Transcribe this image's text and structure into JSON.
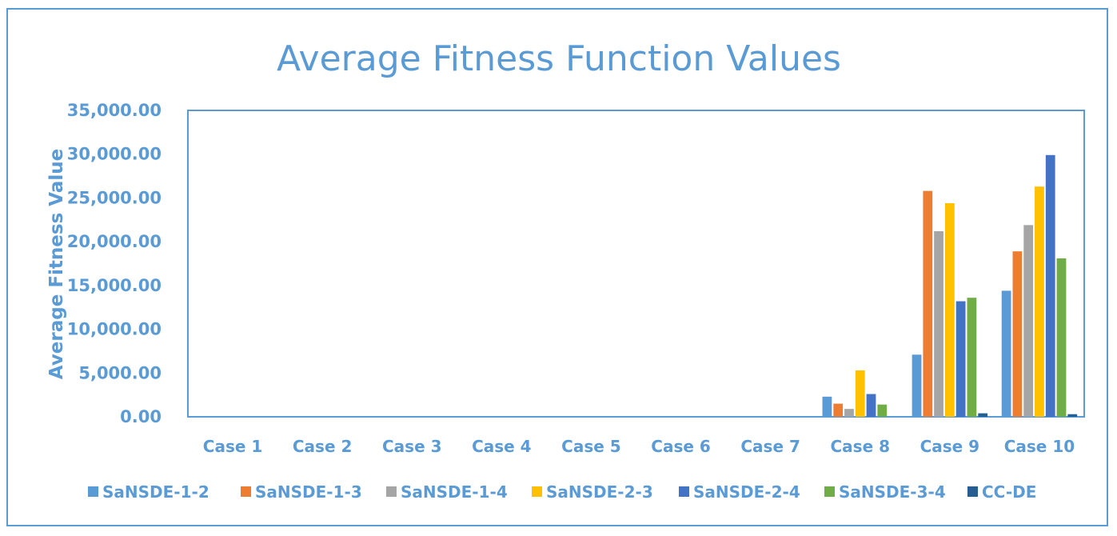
{
  "chart_data": {
    "type": "bar",
    "title": "Average Fitness Function Values",
    "xlabel": "",
    "ylabel": "Average Fitness Value",
    "ylim": [
      0,
      35000
    ],
    "yticks": [
      "0.00",
      "5,000.00",
      "10,000.00",
      "15,000.00",
      "20,000.00",
      "25,000.00",
      "30,000.00",
      "35,000.00"
    ],
    "grid": false,
    "legend_position": "bottom",
    "categories": [
      "Case 1",
      "Case 2",
      "Case 3",
      "Case 4",
      "Case 5",
      "Case 6",
      "Case 7",
      "Case 8",
      "Case 9",
      "Case 10"
    ],
    "series": [
      {
        "name": "SaNSDE-1-2",
        "color": "#5b9bd5",
        "values": [
          0,
          0,
          0,
          0,
          0,
          0,
          0,
          2300,
          7100,
          14400
        ]
      },
      {
        "name": "SaNSDE-1-3",
        "color": "#ed7d31",
        "values": [
          0,
          0,
          0,
          0,
          0,
          0,
          0,
          1500,
          25800,
          18900
        ]
      },
      {
        "name": "SaNSDE-1-4",
        "color": "#a5a5a5",
        "values": [
          0,
          0,
          0,
          0,
          0,
          0,
          0,
          900,
          21200,
          21900
        ]
      },
      {
        "name": "SaNSDE-2-3",
        "color": "#ffc000",
        "values": [
          0,
          0,
          0,
          0,
          0,
          0,
          0,
          5300,
          24400,
          26300
        ]
      },
      {
        "name": "SaNSDE-2-4",
        "color": "#4472c4",
        "values": [
          0,
          0,
          0,
          0,
          0,
          0,
          0,
          2600,
          13200,
          29900
        ]
      },
      {
        "name": "SaNSDE-3-4",
        "color": "#70ad47",
        "values": [
          0,
          0,
          0,
          0,
          0,
          0,
          0,
          1400,
          13600,
          18100
        ]
      },
      {
        "name": "CC-DE",
        "color": "#255e91",
        "values": [
          0,
          0,
          0,
          0,
          0,
          0,
          0,
          0,
          400,
          300
        ]
      }
    ]
  }
}
